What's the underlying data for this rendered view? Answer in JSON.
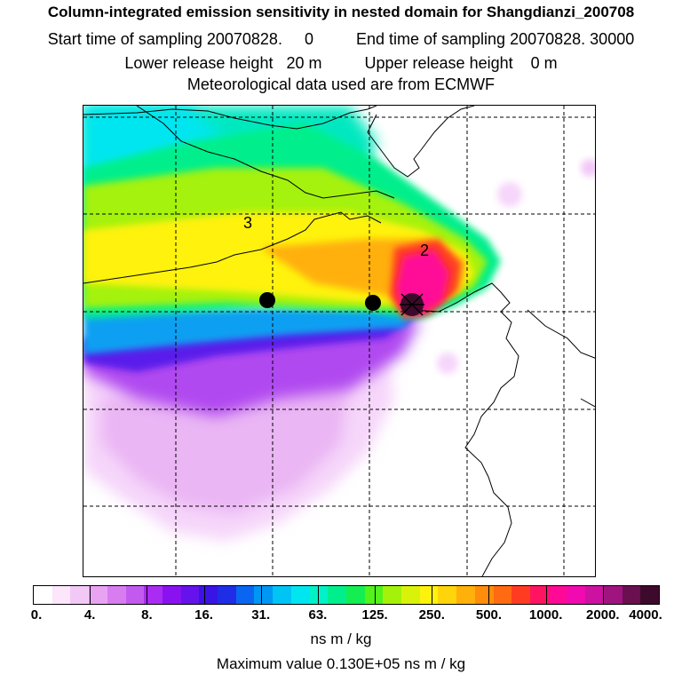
{
  "header": {
    "title": "Column-integrated emission sensitivity in nested domain for Shangdianzi_200708",
    "start_label": "Start time of sampling",
    "start_value": "20070828.     0",
    "end_label": "End time of sampling",
    "end_value": "20070828. 30000",
    "lower_label": "Lower release height",
    "lower_value": "20 m",
    "upper_label": "Upper release height",
    "upper_value": "0 m",
    "met": "Meteorological data used are from ECMWF"
  },
  "map": {
    "labels": [
      {
        "text": "3"
      },
      {
        "text": "2"
      }
    ]
  },
  "colorbar": {
    "tick_labels": [
      "0.",
      "4.",
      "8.",
      "16.",
      "31.",
      "63.",
      "125.",
      "250.",
      "500.",
      "1000.",
      "2000.",
      "4000."
    ],
    "colors": [
      "#ffffff",
      "#fbe6fb",
      "#f2c8f6",
      "#e8a4f2",
      "#d77df0",
      "#c35af0",
      "#aa2cf2",
      "#8a12f0",
      "#6512ec",
      "#3a14e6",
      "#1f2ee6",
      "#0a66f0",
      "#0096f4",
      "#00c4f4",
      "#00e6f0",
      "#00f2c6",
      "#00ef8c",
      "#14ee50",
      "#52f21a",
      "#a4f20a",
      "#d8f20a",
      "#fff20c",
      "#ffd40a",
      "#ffb00a",
      "#ff8c0a",
      "#ff6a12",
      "#ff3c22",
      "#ff1462",
      "#ff0a96",
      "#f00ab0",
      "#cc12a0",
      "#a01480",
      "#6a1050",
      "#3e0a2c"
    ],
    "unit": "ns m / kg"
  },
  "footer": {
    "max_label": "Maximum value",
    "max_value": "0.130E+05 ns m / kg"
  }
}
